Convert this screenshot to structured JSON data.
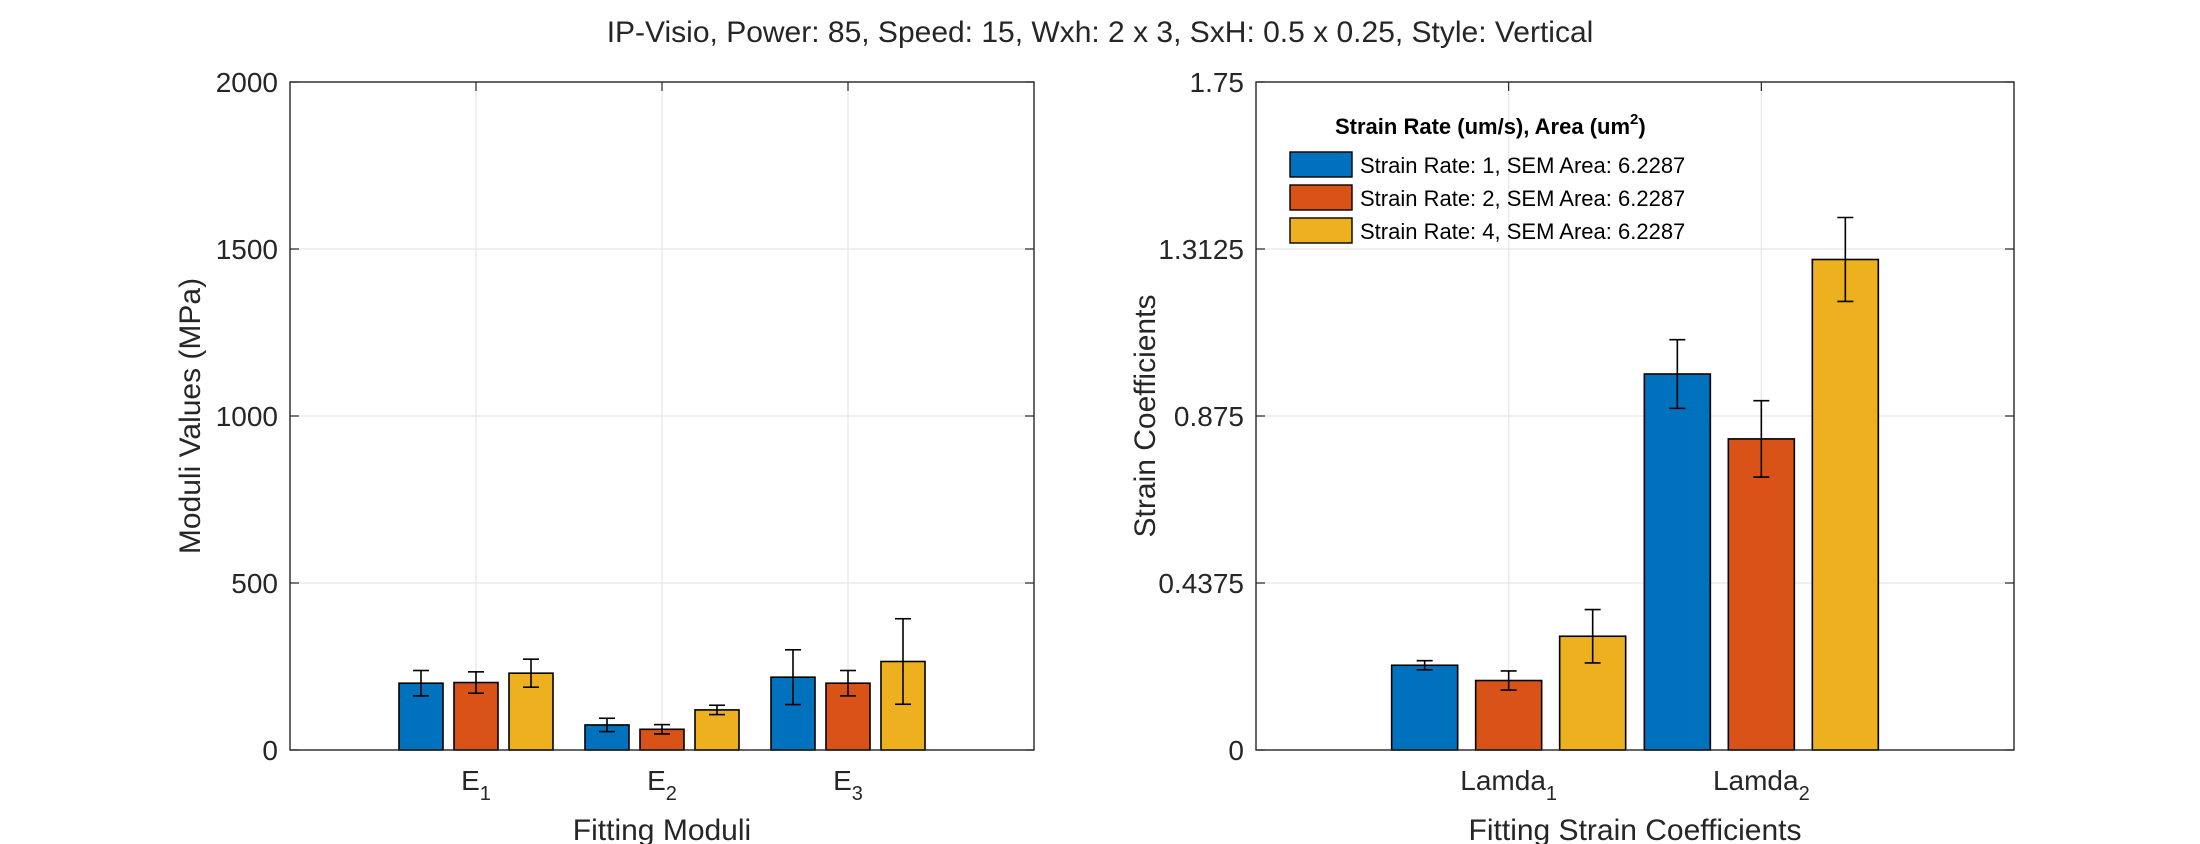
{
  "figure_title": "IP-Visio, Power: 85, Speed: 15, Wxh: 2 x 3, SxH: 0.5 x 0.25, Style: Vertical",
  "colors": {
    "series1": "#0072BD",
    "series2": "#D95319",
    "series3": "#EDB120"
  },
  "chart_data": [
    {
      "type": "bar",
      "xlabel": "Fitting Moduli",
      "ylabel": "Moduli Values (MPa)",
      "ylim": [
        0,
        2000
      ],
      "yticks": [
        "0",
        "500",
        "1000",
        "1500",
        "2000"
      ],
      "grid": true,
      "categories": [
        {
          "base": "E",
          "sub": "1"
        },
        {
          "base": "E",
          "sub": "2"
        },
        {
          "base": "E",
          "sub": "3"
        }
      ],
      "series": [
        {
          "values": [
            200,
            75,
            218
          ],
          "errors": [
            38,
            20,
            82
          ]
        },
        {
          "values": [
            202,
            62,
            200
          ],
          "errors": [
            32,
            14,
            38
          ]
        },
        {
          "values": [
            230,
            120,
            265
          ],
          "errors": [
            42,
            14,
            128
          ]
        }
      ]
    },
    {
      "type": "bar",
      "xlabel": "Fitting Strain Coefficients",
      "ylabel": "Strain Coefficients",
      "ylim": [
        0,
        1.75
      ],
      "yticks": [
        "0",
        "0.4375",
        "0.875",
        "1.3125",
        "1.75"
      ],
      "grid": true,
      "legend_position": "top-left",
      "legend_title": "Strain Rate (um/s), Area (um",
      "legend_title_sup": "2",
      "legend_title_end": ")",
      "categories": [
        {
          "base": "Lamda",
          "sub": "1"
        },
        {
          "base": "Lamda",
          "sub": "2"
        }
      ],
      "series": [
        {
          "name": "Strain Rate: 1, SEM Area: 6.2287",
          "values": [
            0.222,
            0.985
          ],
          "errors": [
            0.012,
            0.09
          ]
        },
        {
          "name": "Strain Rate: 2, SEM Area: 6.2287",
          "values": [
            0.182,
            0.815
          ],
          "errors": [
            0.025,
            0.1
          ]
        },
        {
          "name": "Strain Rate: 4, SEM Area: 6.2287",
          "values": [
            0.298,
            1.285
          ],
          "errors": [
            0.07,
            0.11
          ]
        }
      ]
    }
  ]
}
